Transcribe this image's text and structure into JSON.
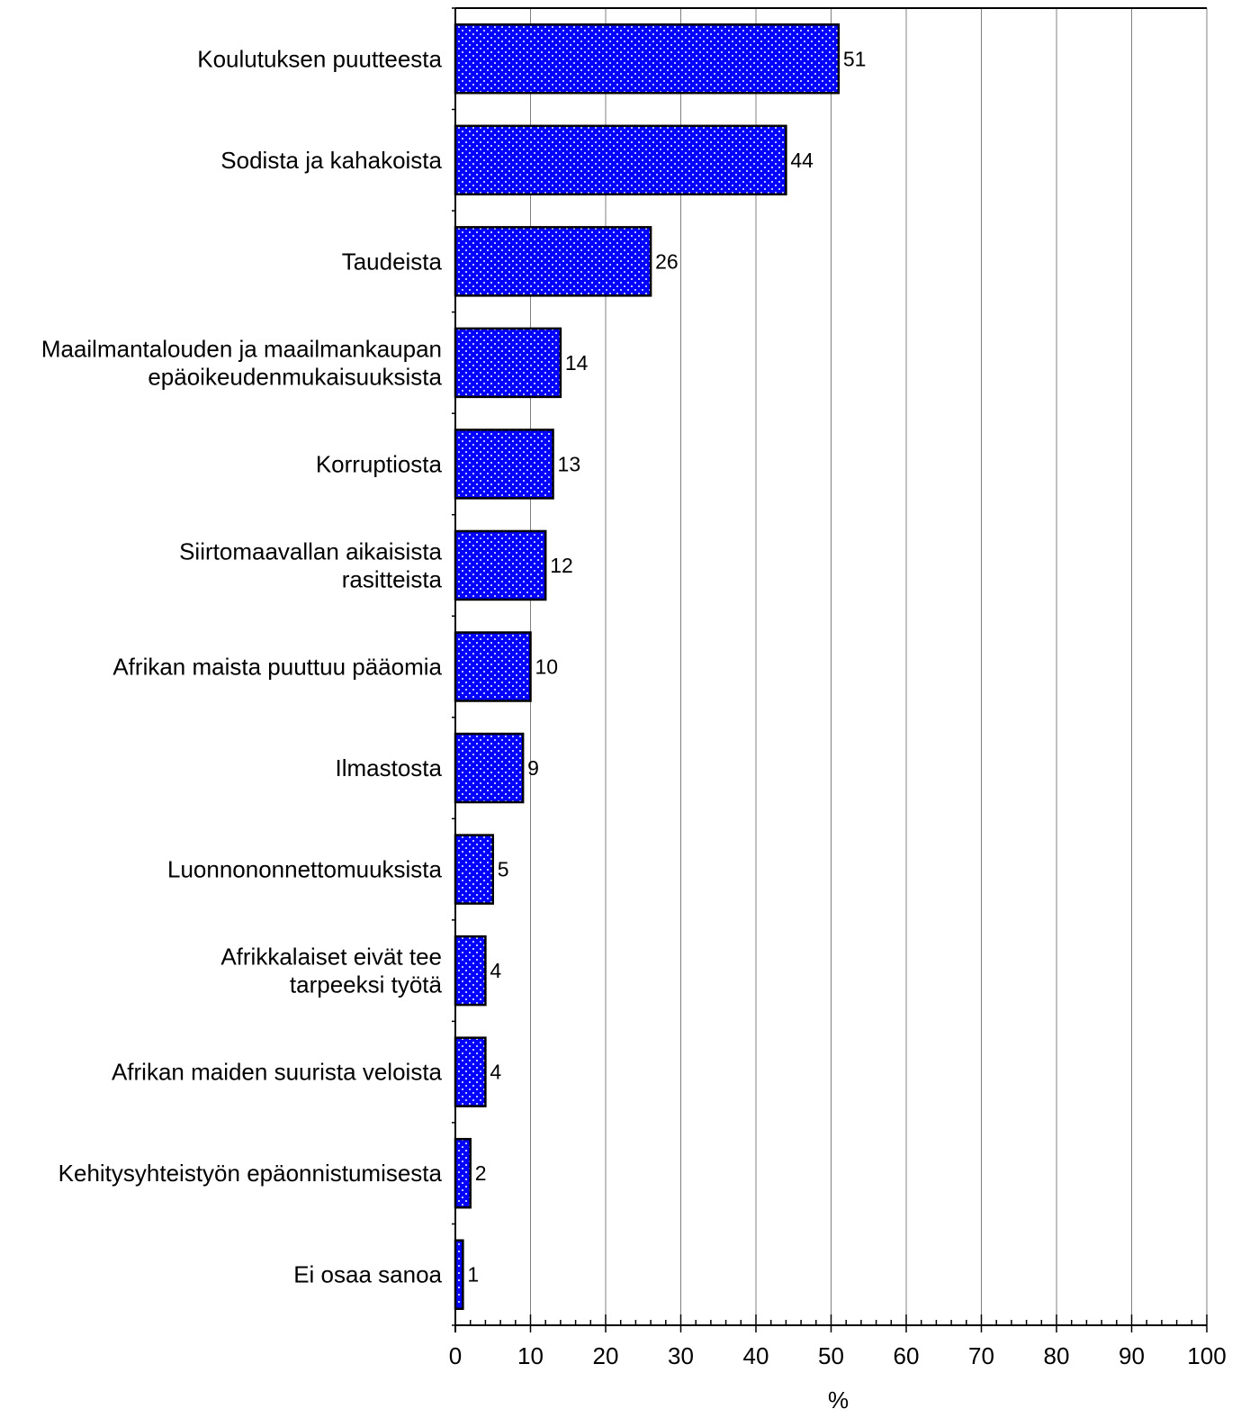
{
  "chart_data": {
    "type": "bar",
    "orientation": "horizontal",
    "title": "",
    "xlabel": "%",
    "ylabel": "",
    "xlim": [
      0,
      100
    ],
    "x_major_ticks": [
      0,
      10,
      20,
      30,
      40,
      50,
      60,
      70,
      80,
      90,
      100
    ],
    "x_tick_labels": [
      "0",
      "10",
      "20",
      "30",
      "40",
      "50",
      "60",
      "70",
      "80",
      "90",
      "100"
    ],
    "grid": "vertical gridlines at major ticks",
    "legend": "none",
    "bar_color": "#0000FF",
    "bar_pattern": "white dots",
    "categories": [
      [
        "Koulutuksen puutteesta"
      ],
      [
        "Sodista ja kahakoista"
      ],
      [
        "Taudeista"
      ],
      [
        "Maailmantalouden ja maailmankaupan",
        "epäoikeudenmukaisuuksista"
      ],
      [
        "Korruptiosta"
      ],
      [
        "Siirtomaavallan aikaisista",
        "rasitteista"
      ],
      [
        "Afrikan maista puuttuu pääomia"
      ],
      [
        "Ilmastosta"
      ],
      [
        "Luonnononnettomuuksista"
      ],
      [
        "Afrikkalaiset eivät tee",
        "tarpeeksi työtä"
      ],
      [
        "Afrikan maiden suurista veloista"
      ],
      [
        "Kehitysyhteistyön epäonnistumisesta"
      ],
      [
        "Ei osaa sanoa"
      ]
    ],
    "values": [
      51,
      44,
      26,
      14,
      13,
      12,
      10,
      9,
      5,
      4,
      4,
      2,
      1
    ],
    "value_labels": [
      "51",
      "44",
      "26",
      "14",
      "13",
      "12",
      "10",
      "9",
      "5",
      "4",
      "4",
      "2",
      "1"
    ]
  }
}
